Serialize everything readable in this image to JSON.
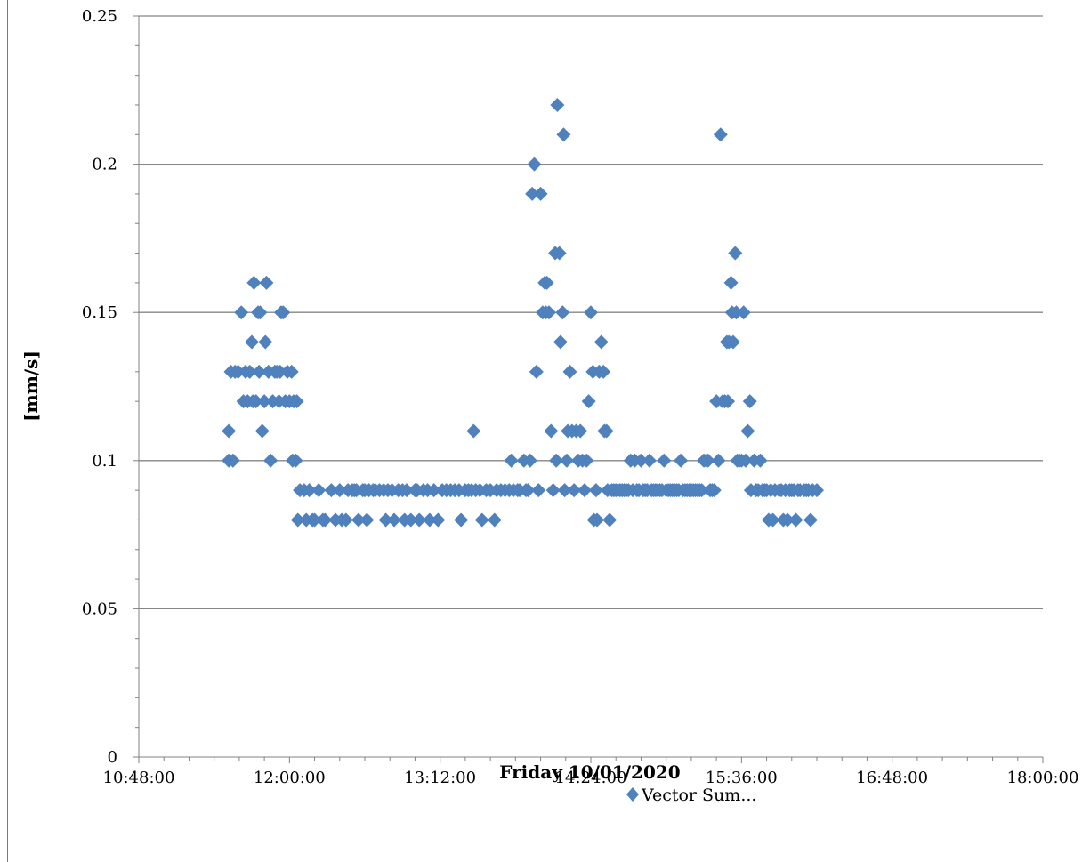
{
  "chart_data": {
    "type": "scatter",
    "xlabel": "Friday 10/01/2020",
    "ylabel": "[mm/s]",
    "xlim": [
      648,
      1080
    ],
    "ylim": [
      0,
      0.25
    ],
    "x_unit": "minutes of day",
    "x_tick_values": [
      648,
      720,
      792,
      864,
      936,
      1008,
      1080
    ],
    "x_tick_labels": [
      "10:48:00",
      "12:00:00",
      "13:12:00",
      "14:24:00",
      "15:36:00",
      "16:48:00",
      "18:00:00"
    ],
    "y_tick_values": [
      0,
      0.05,
      0.1,
      0.15,
      0.2,
      0.25
    ],
    "y_tick_labels": [
      "0",
      "0.05",
      "0.1",
      "0.15",
      "0.2",
      "0.25"
    ],
    "grid": "horizontal",
    "marker": "diamond",
    "color": "#4f81bd",
    "legend": {
      "position": "bottom",
      "entries": [
        "Vector Sum..."
      ]
    },
    "series": [
      {
        "name": "Vector Sum...",
        "points": [
          [
            691.0,
            0.11
          ],
          [
            691.0,
            0.1
          ],
          [
            693.0,
            0.1
          ],
          [
            692.0,
            0.13
          ],
          [
            694.0,
            0.13
          ],
          [
            695.5,
            0.13
          ],
          [
            697.0,
            0.15
          ],
          [
            698.0,
            0.12
          ],
          [
            699.0,
            0.13
          ],
          [
            700.0,
            0.12
          ],
          [
            701.0,
            0.13
          ],
          [
            702.0,
            0.14
          ],
          [
            702.5,
            0.12
          ],
          [
            703.0,
            0.16
          ],
          [
            704.0,
            0.12
          ],
          [
            705.0,
            0.15
          ],
          [
            705.5,
            0.13
          ],
          [
            706.0,
            0.15
          ],
          [
            707.0,
            0.11
          ],
          [
            708.0,
            0.12
          ],
          [
            708.5,
            0.14
          ],
          [
            709.0,
            0.16
          ],
          [
            710.0,
            0.13
          ],
          [
            711.0,
            0.1
          ],
          [
            712.0,
            0.12
          ],
          [
            713.0,
            0.13
          ],
          [
            714.0,
            0.13
          ],
          [
            715.0,
            0.12
          ],
          [
            715.5,
            0.13
          ],
          [
            716.0,
            0.15
          ],
          [
            717.0,
            0.15
          ],
          [
            718.0,
            0.12
          ],
          [
            719.0,
            0.13
          ],
          [
            720.0,
            0.12
          ],
          [
            721.0,
            0.13
          ],
          [
            721.5,
            0.1
          ],
          [
            722.0,
            0.12
          ],
          [
            723.0,
            0.1
          ],
          [
            723.5,
            0.12
          ],
          [
            724.0,
            0.08
          ],
          [
            725.0,
            0.09
          ],
          [
            727.0,
            0.09
          ],
          [
            728.0,
            0.08
          ],
          [
            729.5,
            0.09
          ],
          [
            731.0,
            0.08
          ],
          [
            732.0,
            0.08
          ],
          [
            734.0,
            0.09
          ],
          [
            736.0,
            0.08
          ],
          [
            737.0,
            0.08
          ],
          [
            740.0,
            0.09
          ],
          [
            742.0,
            0.08
          ],
          [
            744.0,
            0.09
          ],
          [
            745.0,
            0.08
          ],
          [
            747.0,
            0.08
          ],
          [
            748.0,
            0.09
          ],
          [
            750.0,
            0.09
          ],
          [
            751.0,
            0.09
          ],
          [
            752.0,
            0.09
          ],
          [
            753.0,
            0.08
          ],
          [
            755.0,
            0.09
          ],
          [
            756.0,
            0.09
          ],
          [
            757.0,
            0.08
          ],
          [
            758.0,
            0.09
          ],
          [
            760.0,
            0.09
          ],
          [
            761.0,
            0.09
          ],
          [
            763.0,
            0.09
          ],
          [
            765.0,
            0.09
          ],
          [
            766.0,
            0.08
          ],
          [
            767.0,
            0.09
          ],
          [
            769.0,
            0.09
          ],
          [
            770.0,
            0.08
          ],
          [
            772.0,
            0.09
          ],
          [
            774.0,
            0.09
          ],
          [
            775.0,
            0.08
          ],
          [
            776.0,
            0.09
          ],
          [
            778.0,
            0.08
          ],
          [
            780.0,
            0.09
          ],
          [
            781.0,
            0.09
          ],
          [
            782.0,
            0.08
          ],
          [
            784.0,
            0.09
          ],
          [
            786.0,
            0.09
          ],
          [
            787.0,
            0.08
          ],
          [
            789.0,
            0.09
          ],
          [
            791.0,
            0.08
          ],
          [
            793.0,
            0.09
          ],
          [
            795.0,
            0.09
          ],
          [
            797.0,
            0.09
          ],
          [
            799.0,
            0.09
          ],
          [
            801.0,
            0.09
          ],
          [
            802.0,
            0.08
          ],
          [
            804.0,
            0.09
          ],
          [
            805.5,
            0.09
          ],
          [
            807.0,
            0.09
          ],
          [
            808.0,
            0.11
          ],
          [
            809.0,
            0.09
          ],
          [
            811.0,
            0.09
          ],
          [
            812.0,
            0.08
          ],
          [
            814.0,
            0.09
          ],
          [
            816.0,
            0.09
          ],
          [
            818.0,
            0.08
          ],
          [
            819.0,
            0.09
          ],
          [
            821.0,
            0.09
          ],
          [
            823.0,
            0.09
          ],
          [
            825.0,
            0.09
          ],
          [
            826.0,
            0.1
          ],
          [
            827.0,
            0.09
          ],
          [
            829.0,
            0.09
          ],
          [
            830.0,
            0.09
          ],
          [
            832.0,
            0.1
          ],
          [
            833.0,
            0.09
          ],
          [
            834.0,
            0.09
          ],
          [
            835.0,
            0.1
          ],
          [
            836.0,
            0.19
          ],
          [
            837.0,
            0.2
          ],
          [
            838.0,
            0.13
          ],
          [
            839.0,
            0.09
          ],
          [
            840.0,
            0.19
          ],
          [
            841.0,
            0.15
          ],
          [
            842.0,
            0.16
          ],
          [
            842.5,
            0.15
          ],
          [
            843.0,
            0.16
          ],
          [
            844.0,
            0.15
          ],
          [
            845.0,
            0.11
          ],
          [
            846.0,
            0.09
          ],
          [
            847.0,
            0.17
          ],
          [
            847.5,
            0.1
          ],
          [
            848.0,
            0.22
          ],
          [
            849.0,
            0.17
          ],
          [
            849.5,
            0.14
          ],
          [
            850.5,
            0.15
          ],
          [
            851.0,
            0.21
          ],
          [
            851.5,
            0.09
          ],
          [
            852.5,
            0.1
          ],
          [
            853.0,
            0.11
          ],
          [
            854.0,
            0.13
          ],
          [
            855.0,
            0.11
          ],
          [
            856.0,
            0.09
          ],
          [
            857.0,
            0.11
          ],
          [
            858.0,
            0.1
          ],
          [
            859.0,
            0.11
          ],
          [
            860.0,
            0.1
          ],
          [
            861.0,
            0.09
          ],
          [
            862.0,
            0.1
          ],
          [
            863.0,
            0.12
          ],
          [
            864.0,
            0.15
          ],
          [
            865.0,
            0.13
          ],
          [
            865.5,
            0.08
          ],
          [
            866.5,
            0.09
          ],
          [
            867.0,
            0.08
          ],
          [
            868.0,
            0.13
          ],
          [
            869.0,
            0.14
          ],
          [
            870.0,
            0.13
          ],
          [
            870.5,
            0.11
          ],
          [
            871.5,
            0.11
          ],
          [
            872.0,
            0.09
          ],
          [
            873.0,
            0.08
          ],
          [
            874.0,
            0.09
          ],
          [
            875.0,
            0.09
          ],
          [
            876.0,
            0.09
          ],
          [
            877.0,
            0.09
          ],
          [
            878.0,
            0.09
          ],
          [
            879.0,
            0.09
          ],
          [
            880.0,
            0.09
          ],
          [
            881.0,
            0.09
          ],
          [
            882.0,
            0.09
          ],
          [
            883.0,
            0.1
          ],
          [
            884.0,
            0.09
          ],
          [
            885.0,
            0.1
          ],
          [
            886.0,
            0.09
          ],
          [
            887.0,
            0.09
          ],
          [
            888.0,
            0.1
          ],
          [
            889.0,
            0.09
          ],
          [
            890.0,
            0.09
          ],
          [
            891.0,
            0.09
          ],
          [
            892.0,
            0.1
          ],
          [
            893.0,
            0.09
          ],
          [
            894.0,
            0.09
          ],
          [
            895.0,
            0.09
          ],
          [
            896.0,
            0.09
          ],
          [
            897.0,
            0.09
          ],
          [
            898.0,
            0.09
          ],
          [
            899.0,
            0.1
          ],
          [
            900.0,
            0.09
          ],
          [
            901.0,
            0.09
          ],
          [
            902.0,
            0.09
          ],
          [
            903.0,
            0.09
          ],
          [
            904.0,
            0.09
          ],
          [
            905.0,
            0.09
          ],
          [
            906.0,
            0.09
          ],
          [
            907.0,
            0.1
          ],
          [
            908.0,
            0.09
          ],
          [
            909.0,
            0.09
          ],
          [
            910.0,
            0.09
          ],
          [
            911.0,
            0.09
          ],
          [
            912.0,
            0.09
          ],
          [
            913.0,
            0.09
          ],
          [
            914.0,
            0.09
          ],
          [
            915.0,
            0.09
          ],
          [
            916.0,
            0.09
          ],
          [
            917.0,
            0.09
          ],
          [
            918.0,
            0.1
          ],
          [
            919.0,
            0.1
          ],
          [
            920.0,
            0.1
          ],
          [
            921.0,
            0.09
          ],
          [
            922.0,
            0.09
          ],
          [
            923.0,
            0.09
          ],
          [
            924.0,
            0.12
          ],
          [
            925.0,
            0.1
          ],
          [
            926.0,
            0.21
          ],
          [
            927.0,
            0.12
          ],
          [
            928.0,
            0.12
          ],
          [
            929.0,
            0.14
          ],
          [
            929.5,
            0.12
          ],
          [
            930.0,
            0.14
          ],
          [
            931.0,
            0.16
          ],
          [
            931.5,
            0.15
          ],
          [
            932.0,
            0.14
          ],
          [
            933.0,
            0.17
          ],
          [
            933.5,
            0.15
          ],
          [
            934.0,
            0.1
          ],
          [
            935.0,
            0.1
          ],
          [
            936.0,
            0.1
          ],
          [
            937.0,
            0.15
          ],
          [
            938.0,
            0.1
          ],
          [
            939.0,
            0.11
          ],
          [
            940.0,
            0.12
          ],
          [
            940.5,
            0.09
          ],
          [
            942.0,
            0.1
          ],
          [
            943.0,
            0.09
          ],
          [
            944.0,
            0.09
          ],
          [
            945.0,
            0.1
          ],
          [
            946.0,
            0.09
          ],
          [
            947.0,
            0.09
          ],
          [
            948.0,
            0.09
          ],
          [
            949.0,
            0.08
          ],
          [
            950.0,
            0.09
          ],
          [
            951.0,
            0.08
          ],
          [
            952.0,
            0.09
          ],
          [
            954.0,
            0.09
          ],
          [
            955.0,
            0.09
          ],
          [
            956.0,
            0.08
          ],
          [
            957.0,
            0.09
          ],
          [
            958.0,
            0.08
          ],
          [
            959.0,
            0.09
          ],
          [
            960.0,
            0.09
          ],
          [
            961.0,
            0.09
          ],
          [
            962.0,
            0.08
          ],
          [
            963.0,
            0.09
          ],
          [
            964.0,
            0.09
          ],
          [
            966.0,
            0.09
          ],
          [
            967.0,
            0.09
          ],
          [
            968.0,
            0.09
          ],
          [
            969.0,
            0.08
          ],
          [
            970.0,
            0.09
          ],
          [
            972.0,
            0.09
          ]
        ]
      }
    ]
  }
}
